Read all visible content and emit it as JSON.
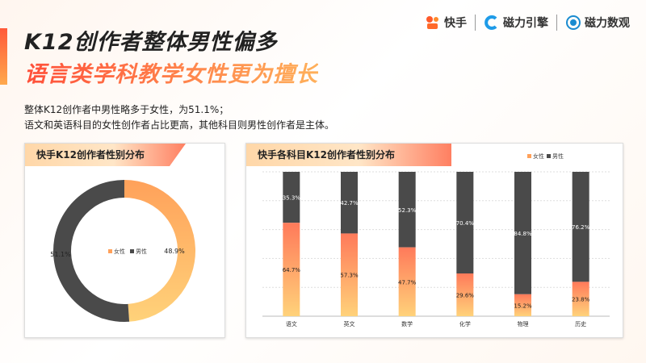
{
  "title_line1": "K12创作者整体男性偏多",
  "title_line2": "语言类学科教学女性更为擅长",
  "logos": [
    "快手",
    "磁力引擎",
    "磁力数观"
  ],
  "desc_line1": "整体K12创作者中男性略多于女性，为51.1%；",
  "desc_line2": "语文和英语科目的女性创作者占比更高，其他科目则男性创作者是主体。",
  "colors": {
    "female": "#ffa15a",
    "female_light": "#ffd27a",
    "male": "#4a4a4a"
  },
  "donut": {
    "title": "快手K12创作者性别分布",
    "legend": [
      "女性",
      "男性"
    ],
    "female_label": "48.9%",
    "male_label": "51.1%"
  },
  "bars": {
    "title": "快手各科目K12创作者性别分布",
    "legend": [
      "女性",
      "男性"
    ]
  },
  "chart_data": [
    {
      "type": "pie",
      "title": "快手K12创作者性别分布",
      "labels": [
        "女性",
        "男性"
      ],
      "values": [
        48.9,
        51.1
      ]
    },
    {
      "type": "bar",
      "title": "快手各科目K12创作者性别分布",
      "stacked": true,
      "categories": [
        "语文",
        "英文",
        "数学",
        "化学",
        "物理",
        "历史"
      ],
      "series": [
        {
          "name": "女性",
          "values": [
            64.7,
            57.3,
            47.7,
            29.6,
            15.2,
            23.8
          ]
        },
        {
          "name": "男性",
          "values": [
            35.3,
            42.7,
            52.3,
            70.4,
            84.8,
            76.2
          ]
        }
      ],
      "ylim": [
        0,
        100
      ]
    }
  ]
}
